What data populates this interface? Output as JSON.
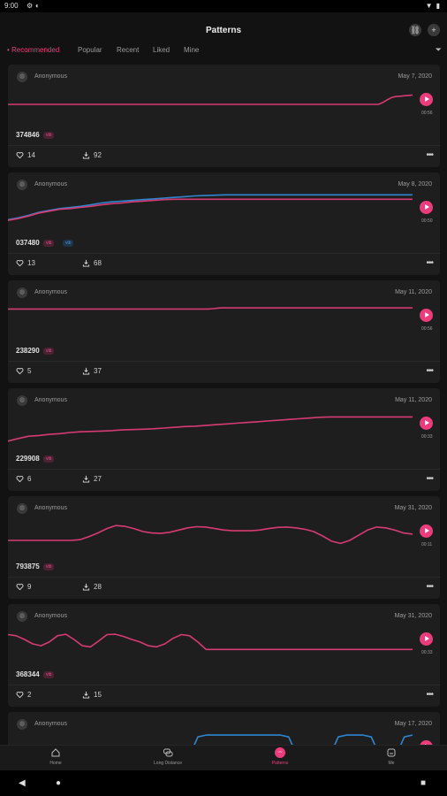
{
  "status_bar": {
    "time": "9:00",
    "icons": [
      "settings-icon",
      "sync-icon",
      "wifi-icon",
      "battery-icon"
    ]
  },
  "app_bar": {
    "title": "Patterns",
    "actions": [
      "link-icon",
      "add-icon"
    ]
  },
  "tabs": [
    {
      "label": "Recommended",
      "active": true
    },
    {
      "label": "Popular",
      "active": false
    },
    {
      "label": "Recent",
      "active": false
    },
    {
      "label": "Liked",
      "active": false
    },
    {
      "label": "Mine",
      "active": false
    }
  ],
  "accent_color": "#ec3c7c",
  "secondary_color": "#4a94d4",
  "cards": [
    {
      "user": "Anonymous",
      "date": "May 7, 2020",
      "id": "374846",
      "badges": [
        "vib"
      ],
      "duration": "00:56",
      "likes": "14",
      "downloads": "92",
      "series": [
        {
          "color": "pink",
          "levels": [
            0.5,
            0.5,
            0.5,
            0.5,
            0.5,
            0.5,
            0.5,
            0.5,
            0.5,
            0.5,
            0.5,
            0.5,
            0.5,
            0.5,
            0.5,
            0.5,
            0.5,
            0.5,
            0.5,
            0.5,
            0.5,
            0.5,
            0.5,
            0.5,
            0.5,
            0.5,
            0.5,
            0.5,
            0.5,
            0.5,
            0.5,
            0.5,
            0.5,
            0.5,
            0.5,
            0.5,
            0.5,
            0.5,
            0.5,
            0.5,
            0.5,
            0.5,
            0.5,
            0.5,
            0.5,
            0.5,
            0.5,
            0.5,
            0.5,
            0.5,
            0.5,
            0.5,
            0.5,
            0.5,
            0.5,
            0.5,
            0.5,
            0.5,
            0.5,
            0.5,
            0.5,
            0.5,
            0.5,
            0.5,
            0.5,
            0.5,
            0.5,
            0.5,
            0.5,
            0.5,
            0.5,
            0.5,
            0.5,
            0.5,
            0.5,
            0.5,
            0.5,
            0.5,
            0.5,
            0.5,
            0.5,
            0.5,
            0.5,
            0.5,
            0.5,
            0.5,
            0.5,
            0.5,
            0.55,
            0.62,
            0.68,
            0.71,
            0.72,
            0.73,
            0.74,
            0.75
          ]
        }
      ]
    },
    {
      "user": "Anonymous",
      "date": "May 8, 2020",
      "id": "037480",
      "badges": [
        "vib",
        "vib"
      ],
      "duration": "00:50",
      "likes": "13",
      "downloads": "68",
      "series": [
        {
          "color": "blue",
          "levels": [
            0.3,
            0.35,
            0.42,
            0.5,
            0.55,
            0.6,
            0.63,
            0.66,
            0.7,
            0.75,
            0.78,
            0.8,
            0.82,
            0.84,
            0.86,
            0.88,
            0.9,
            0.92,
            0.94,
            0.95,
            0.96,
            0.97,
            0.97,
            0.97,
            0.97,
            0.97,
            0.97,
            0.97,
            0.97,
            0.97,
            0.97,
            0.97,
            0.97,
            0.97,
            0.97,
            0.97,
            0.97,
            0.97,
            0.97,
            0.97
          ]
        },
        {
          "color": "pink",
          "levels": [
            0.28,
            0.33,
            0.4,
            0.48,
            0.53,
            0.58,
            0.6,
            0.63,
            0.66,
            0.7,
            0.73,
            0.75,
            0.78,
            0.8,
            0.82,
            0.84,
            0.85,
            0.85,
            0.85,
            0.85,
            0.85,
            0.85,
            0.85,
            0.85,
            0.85,
            0.85,
            0.85,
            0.85,
            0.85,
            0.85,
            0.85,
            0.85,
            0.85,
            0.85,
            0.85,
            0.85,
            0.85,
            0.85,
            0.85,
            0.85
          ]
        }
      ]
    },
    {
      "user": "Anonymous",
      "date": "May 11, 2020",
      "id": "238290",
      "badges": [
        "vib"
      ],
      "duration": "00:56",
      "likes": "5",
      "downloads": "37",
      "series": [
        {
          "color": "pink",
          "levels": [
            0.8,
            0.8,
            0.8,
            0.8,
            0.8,
            0.8,
            0.8,
            0.8,
            0.8,
            0.8,
            0.8,
            0.8,
            0.8,
            0.8,
            0.8,
            0.8,
            0.8,
            0.8,
            0.8,
            0.8,
            0.8,
            0.8,
            0.8,
            0.8,
            0.8,
            0.8,
            0.8,
            0.8,
            0.8,
            0.8,
            0.8,
            0.8,
            0.8,
            0.8,
            0.8,
            0.8,
            0.8,
            0.8,
            0.8,
            0.8,
            0.8,
            0.8,
            0.8,
            0.8,
            0.8,
            0.8,
            0.8,
            0.8,
            0.81,
            0.82,
            0.83,
            0.83,
            0.83,
            0.83,
            0.83,
            0.83,
            0.83,
            0.83,
            0.83,
            0.83,
            0.83,
            0.83,
            0.83,
            0.83,
            0.83,
            0.83,
            0.83,
            0.83,
            0.83,
            0.83,
            0.83,
            0.83,
            0.83,
            0.83,
            0.83,
            0.83,
            0.83,
            0.83,
            0.83,
            0.83,
            0.83,
            0.83,
            0.83,
            0.83,
            0.83,
            0.83,
            0.83,
            0.83,
            0.83,
            0.83,
            0.83,
            0.83,
            0.83,
            0.83,
            0.83,
            0.83
          ]
        }
      ]
    },
    {
      "user": "Anonymous",
      "date": "May 11, 2020",
      "id": "229908",
      "badges": [
        "vib"
      ],
      "duration": "00:33",
      "likes": "6",
      "downloads": "27",
      "series": [
        {
          "color": "pink",
          "levels": [
            0.15,
            0.22,
            0.28,
            0.3,
            0.33,
            0.35,
            0.38,
            0.4,
            0.41,
            0.42,
            0.43,
            0.45,
            0.46,
            0.47,
            0.48,
            0.5,
            0.52,
            0.54,
            0.55,
            0.57,
            0.59,
            0.61,
            0.63,
            0.65,
            0.67,
            0.69,
            0.71,
            0.73,
            0.75,
            0.77,
            0.79,
            0.8,
            0.8,
            0.8,
            0.8,
            0.8,
            0.8,
            0.8,
            0.8,
            0.8
          ]
        }
      ]
    },
    {
      "user": "Anonymous",
      "date": "May 31, 2020",
      "id": "793875",
      "badges": [
        "vib"
      ],
      "duration": "00:11",
      "likes": "9",
      "downloads": "28",
      "series": [
        {
          "color": "pink",
          "levels": [
            0.38,
            0.38,
            0.38,
            0.38,
            0.38,
            0.38,
            0.38,
            0.38,
            0.4,
            0.48,
            0.58,
            0.7,
            0.78,
            0.76,
            0.7,
            0.62,
            0.58,
            0.57,
            0.6,
            0.66,
            0.72,
            0.75,
            0.74,
            0.7,
            0.66,
            0.64,
            0.64,
            0.64,
            0.66,
            0.7,
            0.73,
            0.74,
            0.72,
            0.68,
            0.62,
            0.5,
            0.36,
            0.3,
            0.38,
            0.52,
            0.66,
            0.74,
            0.72,
            0.66,
            0.58,
            0.55
          ]
        }
      ]
    },
    {
      "user": "Anonymous",
      "date": "May 31, 2020",
      "id": "368344",
      "badges": [
        "vib"
      ],
      "duration": "00:33",
      "likes": "2",
      "downloads": "15",
      "series": [
        {
          "color": "pink",
          "levels": [
            0.75,
            0.72,
            0.62,
            0.5,
            0.45,
            0.55,
            0.72,
            0.76,
            0.62,
            0.45,
            0.42,
            0.58,
            0.75,
            0.76,
            0.7,
            0.62,
            0.55,
            0.45,
            0.42,
            0.5,
            0.65,
            0.75,
            0.72,
            0.55,
            0.35,
            0.35,
            0.35,
            0.35,
            0.35,
            0.35,
            0.35,
            0.35,
            0.35,
            0.35,
            0.35,
            0.35,
            0.35,
            0.35,
            0.35,
            0.35,
            0.35,
            0.35,
            0.35,
            0.35,
            0.35,
            0.35,
            0.35,
            0.35,
            0.35,
            0.35
          ]
        }
      ]
    },
    {
      "user": "Anonymous",
      "date": "May 17, 2020",
      "id": "",
      "badges": [],
      "duration": "",
      "likes": "",
      "downloads": "",
      "series": [
        {
          "color": "blue",
          "levels": [
            0,
            0,
            0,
            0,
            0,
            0,
            0,
            0,
            0,
            0,
            0,
            0,
            0,
            0,
            0,
            0,
            0,
            0,
            0,
            0,
            0,
            0,
            0.4,
            0.9,
            0.95,
            0.95,
            0.95,
            0.95,
            0.95,
            0.95,
            0.95,
            0.95,
            0.95,
            0.95,
            0.9,
            0.4,
            0,
            0,
            0,
            0.4,
            0.9,
            0.95,
            0.95,
            0.95,
            0.9,
            0.4,
            0,
            0.4,
            0.9,
            0.95
          ]
        }
      ]
    }
  ],
  "bottom_nav": [
    {
      "label": "Home",
      "icon": "home-icon",
      "active": false
    },
    {
      "label": "Long Distance",
      "icon": "chat-bubbles-icon",
      "active": false
    },
    {
      "label": "Patterns",
      "icon": "patterns-icon",
      "active": true
    },
    {
      "label": "Me",
      "icon": "profile-card-icon",
      "active": false
    }
  ],
  "system_nav": [
    "back-icon",
    "home-circle-icon",
    "recents-icon"
  ]
}
